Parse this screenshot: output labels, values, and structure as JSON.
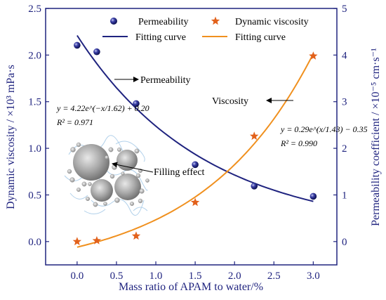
{
  "chart_data": {
    "type": "scatter",
    "xlabel": "Mass ratio of APAM to water/%",
    "ylabel_left": "Dynamic viscosity / ×10³ mPa·s",
    "ylabel_right": "Permeability coefficient / ×10⁻⁵ cm·s⁻¹",
    "x_ticks": [
      "0.0",
      "0.5",
      "1.0",
      "1.5",
      "2.0",
      "2.5",
      "3.0"
    ],
    "y_left_ticks": [
      "0.0",
      "0.5",
      "1.0",
      "1.5",
      "2.0",
      "2.5"
    ],
    "y_right_ticks": [
      "0",
      "1",
      "2",
      "3",
      "4",
      "5"
    ],
    "xlim": [
      -0.4,
      3.3
    ],
    "ylim_left": [
      -0.25,
      2.5
    ],
    "ylim_right": [
      -0.5,
      5
    ],
    "legend_position": "top",
    "series": [
      {
        "name": "Permeability",
        "axis": "right",
        "marker": "sphere",
        "color": "#1f237f",
        "x": [
          0.0,
          0.25,
          0.75,
          1.5,
          2.25,
          3.0
        ],
        "y": [
          4.21,
          4.07,
          2.96,
          1.65,
          1.19,
          0.97
        ]
      },
      {
        "name": "Dynamic viscosity",
        "axis": "left",
        "marker": "star",
        "color": "#e2611b",
        "x": [
          0.0,
          0.25,
          0.75,
          1.5,
          2.25,
          3.0
        ],
        "y": [
          0.0,
          0.01,
          0.06,
          0.42,
          1.13,
          1.99
        ]
      }
    ],
    "fits": [
      {
        "name": "Fitting curve",
        "axis": "right",
        "color": "#1f237f",
        "model": "y = a*exp(-x/t) + c",
        "a": 4.22,
        "t": 1.62,
        "c": 0.2,
        "x_range": [
          0.0,
          3.0
        ]
      },
      {
        "name": "Fitting curve",
        "axis": "left",
        "color": "#f0901e",
        "model": "y = a*exp(x/t) - c",
        "a": 0.29,
        "t": 1.43,
        "c": 0.35,
        "x_range": [
          0.0,
          3.0
        ]
      }
    ],
    "annotations": {
      "permeability": "Permeability",
      "viscosity": "Viscosity",
      "filling_effect": "Filling effect",
      "eq1": "y = 4.22e^(−x/1.62) + 0.20",
      "r2_1": "R² = 0.971",
      "eq2": "y = 0.29e^(x/1.43) − 0.35",
      "r2_2": "R² = 0.990"
    }
  }
}
